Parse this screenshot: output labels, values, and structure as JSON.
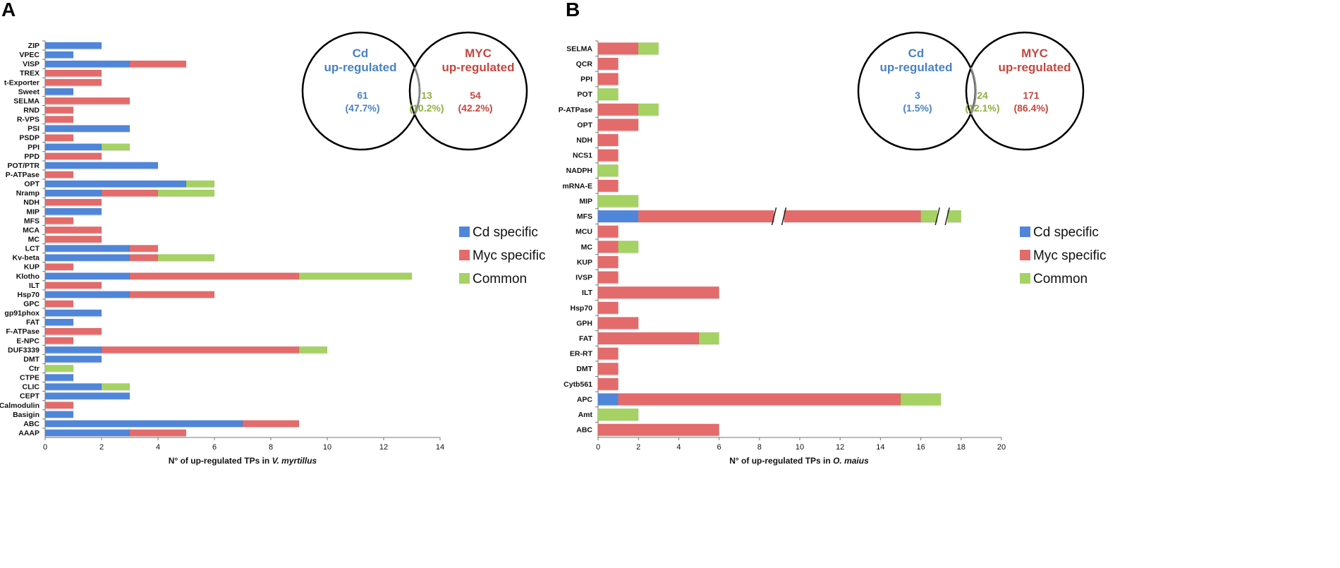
{
  "colors": {
    "cd": "#4f86d9",
    "myc": "#e46b6b",
    "common": "#a5d262",
    "venn_cd": "#4a82c3",
    "venn_myc": "#c4473f",
    "venn_common": "#8fb03e"
  },
  "panels": [
    {
      "letter": "A",
      "venn": {
        "left_title": [
          "Cd",
          "up-regulated"
        ],
        "right_title": [
          "MYC",
          "up-regulated"
        ],
        "left_count": "61",
        "left_pct": "(47.7%)",
        "mid_count": "13",
        "mid_pct": "(10.2%)",
        "right_count": "54",
        "right_pct": "(42.2%)"
      }
    },
    {
      "letter": "B",
      "venn": {
        "left_title": [
          "Cd",
          "up-regulated"
        ],
        "right_title": [
          "MYC",
          "up-regulated"
        ],
        "left_count": "3",
        "left_pct": "(1.5%)",
        "mid_count": "24",
        "mid_pct": "(12.1%)",
        "right_count": "171",
        "right_pct": "(86.4%)"
      }
    }
  ],
  "chart_data": [
    {
      "type": "bar",
      "orientation": "horizontal",
      "stacked": true,
      "title": "A",
      "xlabel": "N° of up-regulated TPs in V. myrtillus",
      "xlabel_prefix": "N° of up-regulated TPs in ",
      "xlabel_species": "V. myrtillus",
      "xlim": [
        0,
        14
      ],
      "xticks": [
        0,
        2,
        4,
        6,
        8,
        10,
        12,
        14
      ],
      "legend": [
        "Cd specific",
        "Myc specific",
        "Common"
      ],
      "categories": [
        "ZIP",
        "VPEC",
        "VISP",
        "TREX",
        "t-Exporter",
        "Sweet",
        "SELMA",
        "RND",
        "R-VPS",
        "PSI",
        "PSDP",
        "PPI",
        "PPD",
        "POT/PTR",
        "P-ATPase",
        "OPT",
        "Nramp",
        "NDH",
        "MIP",
        "MFS",
        "MCA",
        "MC",
        "LCT",
        "Kv-beta",
        "KUP",
        "Klotho",
        "ILT",
        "Hsp70",
        "GPC",
        "gp91phox",
        "FAT",
        "F-ATPase",
        "E-NPC",
        "DUF3339",
        "DMT",
        "Ctr",
        "CTPE",
        "CLIC",
        "CEPT",
        "Calmodulin",
        "Basigin",
        "ABC",
        "AAAP"
      ],
      "series": [
        {
          "name": "Cd specific",
          "values": [
            2,
            1,
            3,
            0,
            0,
            1,
            0,
            0,
            0,
            3,
            0,
            2,
            0,
            4,
            0,
            5,
            2,
            0,
            2,
            0,
            0,
            0,
            3,
            3,
            0,
            3,
            0,
            3,
            0,
            2,
            1,
            0,
            0,
            2,
            2,
            0,
            1,
            2,
            3,
            0,
            1,
            7,
            3
          ]
        },
        {
          "name": "Myc specific",
          "values": [
            0,
            0,
            2,
            2,
            2,
            0,
            3,
            1,
            1,
            0,
            1,
            0,
            2,
            0,
            1,
            0,
            2,
            2,
            0,
            1,
            2,
            2,
            1,
            1,
            1,
            6,
            2,
            3,
            1,
            0,
            0,
            2,
            1,
            7,
            0,
            0,
            0,
            0,
            0,
            1,
            0,
            2,
            2
          ]
        },
        {
          "name": "Common",
          "values": [
            0,
            0,
            0,
            0,
            0,
            0,
            0,
            0,
            0,
            0,
            0,
            1,
            0,
            0,
            0,
            1,
            2,
            0,
            0,
            0,
            0,
            0,
            0,
            2,
            0,
            4,
            0,
            0,
            0,
            0,
            0,
            0,
            0,
            1,
            0,
            1,
            0,
            1,
            0,
            0,
            0,
            0,
            0
          ]
        }
      ]
    },
    {
      "type": "bar",
      "orientation": "horizontal",
      "stacked": true,
      "title": "B",
      "xlabel": "N° of up-regulated TPs in O. maius",
      "xlabel_prefix": "N° of up-regulated TPs in ",
      "xlabel_species": "O. maius",
      "xlim": [
        0,
        20
      ],
      "xticks": [
        0,
        2,
        4,
        6,
        8,
        10,
        12,
        14,
        16,
        18,
        20
      ],
      "legend": [
        "Cd specific",
        "Myc specific",
        "Common"
      ],
      "axis_break": "MFS bar broken twice",
      "categories": [
        "SELMA",
        "QCR",
        "PPI",
        "POT",
        "P-ATPase",
        "OPT",
        "NDH",
        "NCS1",
        "NADPH",
        "mRNA-E",
        "MIP",
        "MFS",
        "MCU",
        "MC",
        "KUP",
        "IVSP",
        "ILT",
        "Hsp70",
        "GPH",
        "FAT",
        "ER-RT",
        "DMT",
        "Cytb561",
        "APC",
        "Amt",
        "ABC"
      ],
      "series": [
        {
          "name": "Cd specific",
          "values": [
            0,
            0,
            0,
            0,
            0,
            0,
            0,
            0,
            0,
            0,
            0,
            2,
            0,
            0,
            0,
            0,
            0,
            0,
            0,
            0,
            0,
            0,
            0,
            1,
            0,
            0
          ]
        },
        {
          "name": "Myc specific",
          "values": [
            2,
            1,
            1,
            0,
            2,
            2,
            1,
            1,
            0,
            1,
            0,
            14,
            1,
            1,
            1,
            1,
            6,
            1,
            2,
            5,
            1,
            1,
            1,
            14,
            0,
            6
          ]
        },
        {
          "name": "Common",
          "values": [
            1,
            0,
            0,
            1,
            1,
            0,
            0,
            0,
            1,
            0,
            2,
            2,
            0,
            1,
            0,
            0,
            0,
            0,
            0,
            1,
            0,
            0,
            0,
            2,
            2,
            0
          ]
        }
      ]
    }
  ]
}
